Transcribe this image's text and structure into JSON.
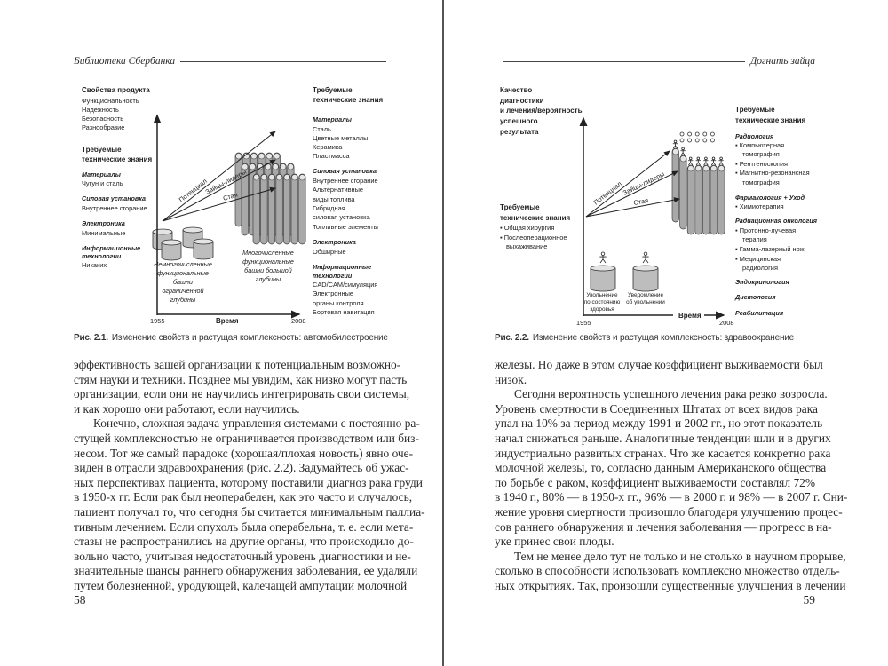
{
  "left_page": {
    "running_head": "Библиотека Сбербанка",
    "page_number": "58",
    "figure": {
      "caption_label": "Рис. 2.1.",
      "caption_text": "Изменение свойств и растущая комплексность: автомобилестроение",
      "product_props_title": "Свойства продукта",
      "product_props": [
        "Функциональность",
        "Надежность",
        "Безопасность",
        "Разнообразие"
      ],
      "left_knowledge_title": [
        "Требуемые",
        "технические знания"
      ],
      "left_knowledge": [
        {
          "head": "Материалы",
          "items": [
            "Чугун и сталь"
          ]
        },
        {
          "head": "Силовая установка",
          "items": [
            "Внутреннее сгорание"
          ]
        },
        {
          "head": "Электроника",
          "items": [
            "Минимальные"
          ]
        },
        {
          "head": [
            "Информационные",
            "технологии"
          ],
          "items": [
            "Никаких"
          ]
        }
      ],
      "arrows": [
        "Потенциал",
        "Зайцы-лидеры",
        "Стая"
      ],
      "few_towers_caption": [
        "Немногочисленные",
        "функциональные",
        "башни",
        "ограниченной",
        "глубины"
      ],
      "many_towers_caption": [
        "Многочисленные",
        "функциональные",
        "башни большой",
        "глубины"
      ],
      "x_axis": {
        "start": "1955",
        "label": "Время",
        "end": "2008"
      },
      "right_knowledge_title": [
        "Требуемые",
        "технические знания"
      ],
      "right_knowledge": [
        {
          "head": "Материалы",
          "items": [
            "Сталь",
            "Цветные металлы",
            "Керамика",
            "Пластмасса"
          ]
        },
        {
          "head": "Силовая установка",
          "items": [
            "Внутреннее сгорание",
            "Альтернативные",
            "виды топлива",
            "Гибридная",
            "силовая установка",
            "Топливные элементы"
          ]
        },
        {
          "head": "Электроника",
          "items": [
            "Обширные"
          ]
        },
        {
          "head": [
            "Информационные",
            "технологии"
          ],
          "items": [
            "CAD/CAM/симуляция",
            "Электронные",
            "органы контроля",
            "Бортовая навигация"
          ]
        }
      ]
    },
    "body_lines": [
      "эффективность вашей организации к потенциальным возможно-",
      "стям науки и техники. Позднее мы увидим, как низко могут пасть",
      "организации, если они не научились интегрировать свои системы,",
      "и как хорошо они работают, если научились.",
      "Конечно, сложная задача управления системами с постоянно ра-",
      "стущей комплексностью не ограничивается производством или биз-",
      "несом. Тот же самый парадокс (хорошая/плохая новость) явно оче-",
      "виден в отрасли здравоохранения (рис. 2.2). Задумайтесь об ужас-",
      "ных перспективах пациента, которому поставили диагноз рака груди",
      "в 1950-х гг. Если рак был неоперабелен, как это часто и случалось,",
      "пациент получал то, что сегодня бы считается минимальным паллиа-",
      "тивным лечением. Если опухоль была операбельна, т. е. если мета-",
      "стазы не распространились на другие органы, что происходило до-",
      "вольно часто, учитывая недостаточный уровень диагностики и не-",
      "значительные шансы раннего обнаружения заболевания, ее удаляли",
      "путем болезненной, уродующей, калечащей ампутации молочной"
    ]
  },
  "right_page": {
    "running_head": "Догнать зайца",
    "page_number": "59",
    "figure": {
      "caption_label": "Рис. 2.2.",
      "caption_text": "Изменение свойств и растущая комплексность: здравоохранение",
      "y_axis_title": [
        "Качество",
        "диагностики",
        "и лечения/вероятность",
        "успешного",
        "результата"
      ],
      "left_knowledge_title": [
        "Требуемые",
        "технические знания"
      ],
      "left_knowledge": [
        "Общая хирургия",
        "Послеоперационное",
        "выхаживание"
      ],
      "arrows": [
        "Потенциал",
        "Зайцы-лидеры",
        "Стая"
      ],
      "cylinder_captions": [
        [
          "Увольнение",
          "по состоянию",
          "здоровья"
        ],
        [
          "Уведомление",
          "об увольнении"
        ]
      ],
      "x_axis": {
        "start": "1955",
        "label": "Время",
        "end": "2008"
      },
      "right_knowledge_title": [
        "Требуемые",
        "технические знания"
      ],
      "right_knowledge": [
        {
          "head": "Радиология",
          "items": [
            "Компьютерная",
            "томография",
            "Рентгеноскопия",
            "Магнитно-резонансная",
            "томография"
          ]
        },
        {
          "head": "Фармакология + Уход",
          "items": [
            "Химиотерапия"
          ]
        },
        {
          "head": "Радиационная онкология",
          "items": [
            "Протонно-лучевая",
            "терапия",
            "Гамма-лазерный нож",
            "Медицинская",
            "радиология"
          ]
        },
        {
          "head": "Эндокринология",
          "items": []
        },
        {
          "head": "Диетология",
          "items": []
        },
        {
          "head": "Реабилитация",
          "items": []
        }
      ]
    },
    "body_lines": [
      "железы. Но даже в этом случае коэффициент выживаемости был",
      "низок.",
      "Сегодня вероятность успешного лечения рака резко возросла.",
      "Уровень смертности в Соединенных Штатах от всех видов рака",
      "упал на 10% за период между 1991 и 2002 гг., но этот показатель",
      "начал снижаться раньше. Аналогичные тенденции шли и в других",
      "индустриально развитых странах. Что же касается конкретно рака",
      "молочной железы, то, согласно данным Американского общества",
      "по борьбе с раком, коэффициент выживаемости составлял 72%",
      "в 1940 г., 80% — в 1950-х гг., 96% — в 2000 г. и 98% — в 2007 г. Сни-",
      "жение уровня смертности произошло благодаря улучшению процес-",
      "сов раннего обнаружения и лечения заболевания — прогресс в на-",
      "уке принес свои плоды.",
      "Тем не менее дело тут не только и не столько в научном прорыве,",
      "сколько в способности использовать комплексно множество отдель-",
      "ных открытиях. Так, произошли существенные улучшения в лечении"
    ]
  }
}
